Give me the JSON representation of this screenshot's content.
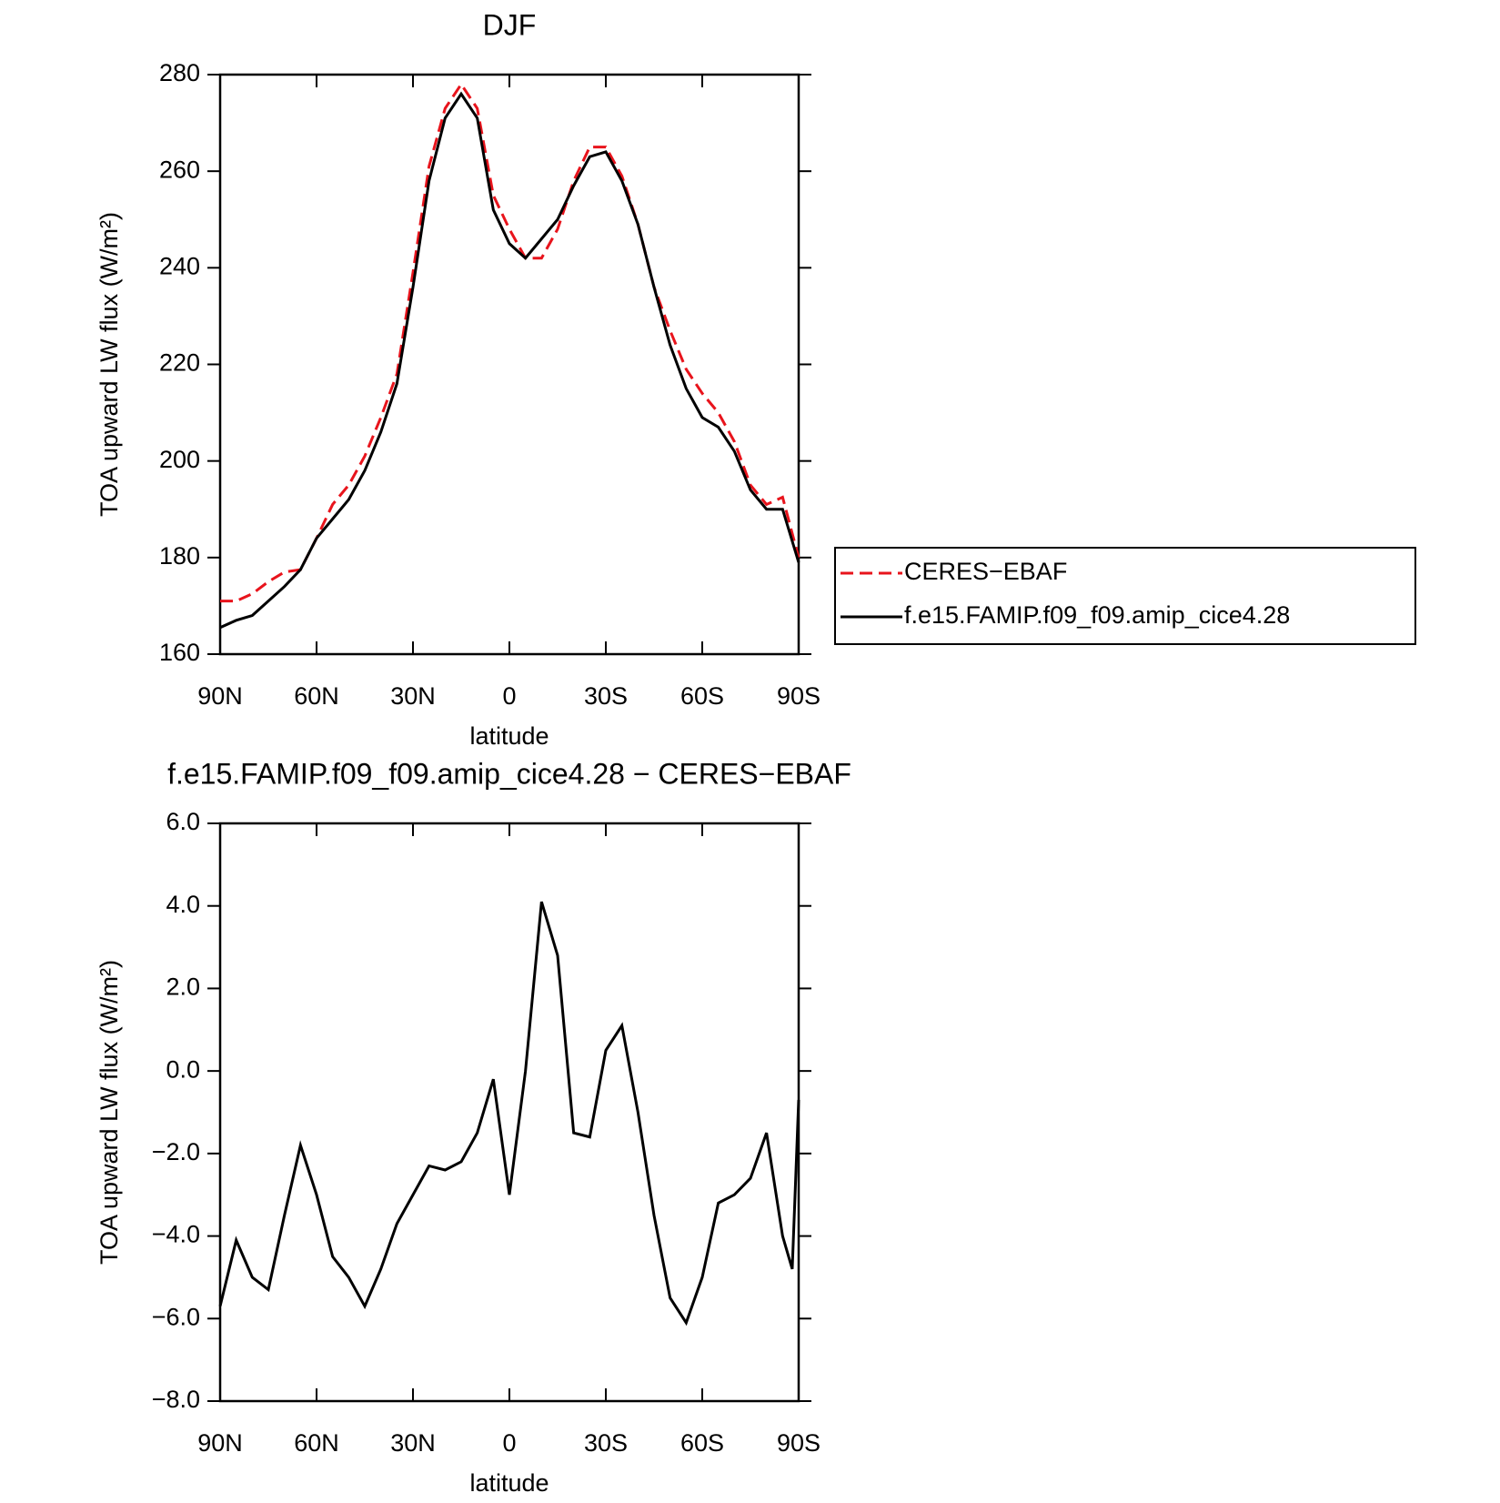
{
  "chart_data": [
    {
      "type": "line",
      "title": "DJF",
      "xlabel": "latitude",
      "ylabel": "TOA upward LW flux (W/m²)",
      "x": [
        90,
        85,
        80,
        75,
        70,
        65,
        60,
        55,
        50,
        45,
        40,
        35,
        30,
        25,
        20,
        15,
        10,
        5,
        0,
        -5,
        -10,
        -15,
        -20,
        -25,
        -30,
        -35,
        -40,
        -45,
        -50,
        -55,
        -60,
        -65,
        -70,
        -75,
        -80,
        -85,
        -90
      ],
      "series": [
        {
          "name": "CERES−EBAF",
          "color": "#e8141c",
          "dash": true,
          "values": [
            171,
            171,
            172.5,
            175,
            177,
            177.5,
            184,
            191,
            195,
            201,
            209,
            218,
            239,
            261,
            273,
            278,
            273,
            255,
            248,
            242,
            242,
            248,
            258,
            265,
            265,
            259,
            249,
            236,
            227,
            219,
            214,
            210,
            204,
            195,
            191,
            192.5,
            180
          ]
        },
        {
          "name": "f.e15.FAMIP.f09_f09.amip_cice4.28",
          "color": "#000000",
          "dash": false,
          "values": [
            165.5,
            167,
            168,
            171,
            174,
            177.5,
            184,
            188,
            192,
            198,
            206,
            216,
            236,
            258,
            271,
            276,
            271,
            252,
            245,
            242,
            246,
            250,
            257,
            263,
            264,
            258,
            249,
            236,
            224,
            215,
            209,
            207,
            202,
            194,
            190,
            190,
            179
          ]
        }
      ],
      "xlim": [
        90,
        -90
      ],
      "xticks": [
        {
          "value": 90,
          "label": "90N"
        },
        {
          "value": 60,
          "label": "60N"
        },
        {
          "value": 30,
          "label": "30N"
        },
        0,
        {
          "value": -30,
          "label": "30S"
        },
        {
          "value": -60,
          "label": "60S"
        },
        {
          "value": -90,
          "label": "90S"
        }
      ],
      "ylim": [
        160,
        280
      ],
      "yticks": [
        160,
        180,
        200,
        220,
        240,
        260,
        280
      ],
      "legend": "right"
    },
    {
      "type": "line",
      "title": "f.e15.FAMIP.f09_f09.amip_cice4.28 − CERES−EBAF",
      "xlabel": "latitude",
      "ylabel": "TOA upward LW flux (W/m²)",
      "x": [
        90,
        85,
        80,
        75,
        70,
        65,
        60,
        55,
        50,
        45,
        40,
        35,
        30,
        25,
        20,
        15,
        10,
        5,
        0,
        -5,
        -10,
        -15,
        -20,
        -25,
        -30,
        -35,
        -40,
        -45,
        -50,
        -55,
        -60,
        -65,
        -70,
        -75,
        -80,
        -85,
        -88,
        -90
      ],
      "series": [
        {
          "name": null,
          "color": "#000000",
          "dash": false,
          "values": [
            -5.7,
            -4.1,
            -5.0,
            -5.3,
            -3.5,
            -1.8,
            -3.0,
            -4.5,
            -5.0,
            -5.7,
            -4.8,
            -3.7,
            -3.0,
            -2.3,
            -2.4,
            -2.2,
            -1.5,
            -0.2,
            -3.0,
            0.0,
            4.1,
            2.8,
            -1.5,
            -1.6,
            0.5,
            1.1,
            -1.0,
            -3.5,
            -5.5,
            -6.1,
            -5.0,
            -3.2,
            -3.0,
            -2.6,
            -1.5,
            -4.0,
            -4.8,
            -0.7
          ]
        }
      ],
      "xlim": [
        90,
        -90
      ],
      "xticks": [
        {
          "value": 90,
          "label": "90N"
        },
        {
          "value": 60,
          "label": "60N"
        },
        {
          "value": 30,
          "label": "30N"
        },
        0,
        {
          "value": -30,
          "label": "30S"
        },
        {
          "value": -60,
          "label": "60S"
        },
        {
          "value": -90,
          "label": "90S"
        }
      ],
      "ylim": [
        -8,
        6
      ],
      "yticks": [
        {
          "value": -8,
          "label": "−8.0"
        },
        {
          "value": -6,
          "label": "−6.0"
        },
        {
          "value": -4,
          "label": "−4.0"
        },
        {
          "value": -2,
          "label": "−2.0"
        },
        {
          "value": 0,
          "label": "0.0"
        },
        {
          "value": 2,
          "label": "2.0"
        },
        {
          "value": 4,
          "label": "4.0"
        },
        {
          "value": 6,
          "label": "6.0"
        }
      ]
    }
  ]
}
